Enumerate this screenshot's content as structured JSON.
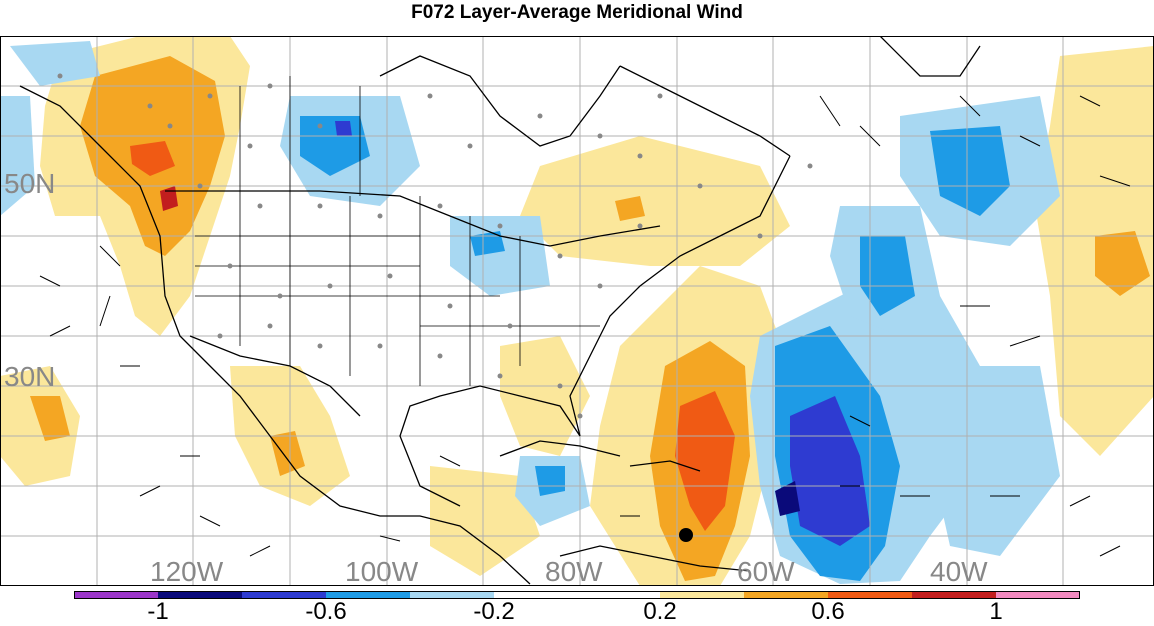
{
  "title": "F072 Layer-Average Meridional Wind",
  "colors": {
    "neg_1": "#9b36c9",
    "neg_08": "#0a0a7a",
    "neg_06": "#2e3bd1",
    "neg_04": "#1e9be6",
    "neg_02": "#a8d8f2",
    "zero": "#ffffff",
    "pos_02": "#fbe79b",
    "pos_04": "#f4a623",
    "pos_06": "#f05a14",
    "pos_08": "#c21e1e",
    "pos_1": "#f28ac0"
  },
  "map": {
    "lat_labels": [
      "50N",
      "30N"
    ],
    "lon_labels": [
      "120W",
      "100W",
      "80W",
      "60W",
      "40W"
    ]
  },
  "colorbar": {
    "labels": [
      "-1",
      "-0.6",
      "-0.2",
      "0.2",
      "0.6",
      "1"
    ]
  }
}
